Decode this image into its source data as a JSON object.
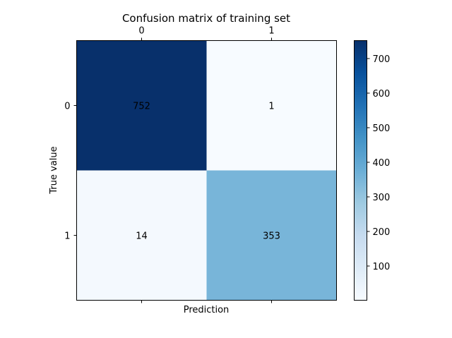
{
  "chart_data": {
    "type": "heatmap",
    "title": "Confusion matrix of training set",
    "xlabel": "Prediction",
    "ylabel": "True value",
    "x_categories": [
      "0",
      "1"
    ],
    "y_categories": [
      "0",
      "1"
    ],
    "matrix": [
      [
        752,
        1
      ],
      [
        14,
        353
      ]
    ],
    "colormap": "Blues",
    "color_range": [
      1,
      752
    ],
    "colorbar_ticks": [
      100,
      200,
      300,
      400,
      500,
      600,
      700
    ],
    "x_ticks_position": "top",
    "grid": false
  }
}
